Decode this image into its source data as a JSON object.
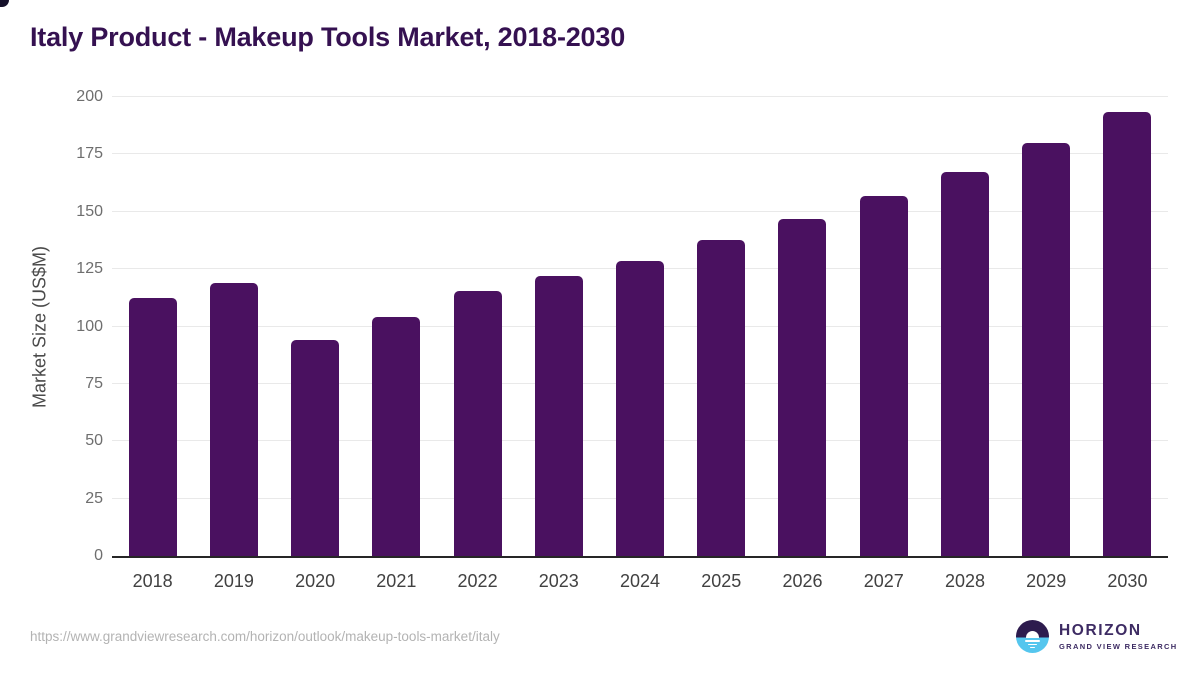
{
  "title": "Italy Product - Makeup Tools Market, 2018-2030",
  "chart_data": {
    "type": "bar",
    "categories": [
      "2018",
      "2019",
      "2020",
      "2021",
      "2022",
      "2023",
      "2024",
      "2025",
      "2026",
      "2027",
      "2028",
      "2029",
      "2030"
    ],
    "values": [
      112.5,
      119,
      94,
      104,
      115.5,
      122,
      128.5,
      137.5,
      147,
      157,
      167.5,
      180,
      193.5
    ],
    "title": "Italy Product - Makeup Tools Market, 2018-2030",
    "xlabel": "",
    "ylabel": "Market Size (US$M)",
    "ylim": [
      0,
      200
    ],
    "yticks": [
      0,
      25,
      50,
      75,
      100,
      125,
      150,
      175,
      200
    ],
    "grid": true,
    "legend": false,
    "bar_color": "#4a1160"
  },
  "footer": {
    "source_url": "https://www.grandviewresearch.com/horizon/outlook/makeup-tools-market/italy",
    "logo": {
      "name": "HORIZON",
      "subtitle": "GRAND VIEW RESEARCH"
    }
  },
  "colors": {
    "title_text": "#351151",
    "bar": "#4a1160",
    "axis_line": "#262626",
    "gridline": "#e9e9e9",
    "y_tick_text": "#6e6e6e",
    "x_tick_text": "#414141",
    "y_label_text": "#4a4a4a",
    "source_text": "#b3b3b3",
    "logo_text": "#3d2b63",
    "logo_dark_half": "#2d1b4e",
    "logo_blue_half": "#55c6ee"
  }
}
